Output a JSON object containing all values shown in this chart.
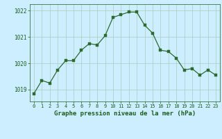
{
  "hours": [
    0,
    1,
    2,
    3,
    4,
    5,
    6,
    7,
    8,
    9,
    10,
    11,
    12,
    13,
    14,
    15,
    16,
    17,
    18,
    19,
    20,
    21,
    22,
    23
  ],
  "pressure": [
    1018.85,
    1019.35,
    1019.25,
    1019.75,
    1020.1,
    1020.1,
    1020.5,
    1020.75,
    1020.7,
    1021.05,
    1021.75,
    1021.85,
    1021.95,
    1021.95,
    1021.45,
    1021.15,
    1020.5,
    1020.45,
    1020.2,
    1019.75,
    1019.8,
    1019.55,
    1019.75,
    1019.55
  ],
  "line_color": "#2d6a2d",
  "marker_color": "#2d6a2d",
  "bg_color": "#cceeff",
  "grid_color_major": "#aaccbb",
  "grid_color_minor": "#bbddcc",
  "xlabel": "Graphe pression niveau de la mer (hPa)",
  "xlabel_color": "#1a5c1a",
  "tick_color": "#1a5c1a",
  "ylim": [
    1018.55,
    1022.25
  ],
  "yticks": [
    1019,
    1020,
    1021,
    1022
  ],
  "xlim": [
    -0.5,
    23.5
  ],
  "xticks": [
    0,
    1,
    2,
    3,
    4,
    5,
    6,
    7,
    8,
    9,
    10,
    11,
    12,
    13,
    14,
    15,
    16,
    17,
    18,
    19,
    20,
    21,
    22,
    23
  ],
  "figsize": [
    3.2,
    2.0
  ],
  "dpi": 100
}
